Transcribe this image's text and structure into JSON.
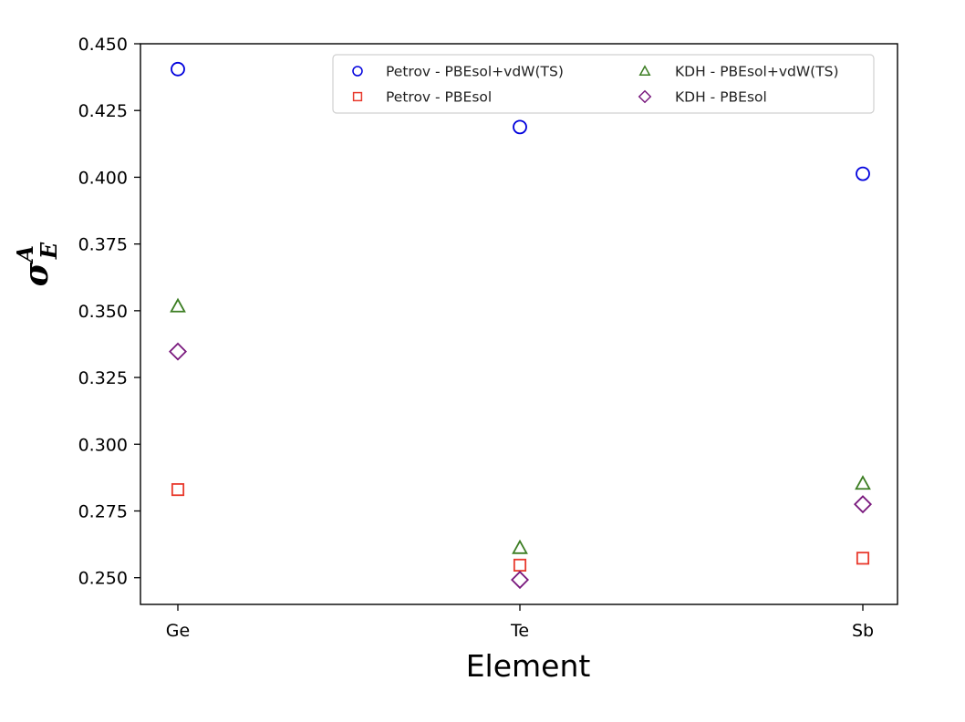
{
  "chart_data": {
    "type": "scatter",
    "xlabel": "Element",
    "ylabel": {
      "base": "σ",
      "sup": "A",
      "sub": "E"
    },
    "categories": [
      "Ge",
      "Te",
      "Sb"
    ],
    "ylim": [
      0.24,
      0.45
    ],
    "yticks": [
      "0.250",
      "0.275",
      "0.300",
      "0.325",
      "0.350",
      "0.375",
      "0.400",
      "0.425",
      "0.450"
    ],
    "grid": false,
    "legend_position": "top-right",
    "legend_columns": 2,
    "series": [
      {
        "name": "Petrov - PBEsol+vdW(TS)",
        "marker": "circle",
        "color": "#0000dd",
        "values": [
          0.4405,
          0.4188,
          0.4013
        ]
      },
      {
        "name": "Petrov - PBEsol",
        "marker": "square",
        "color": "#e8392c",
        "values": [
          0.283,
          0.2547,
          0.2573
        ]
      },
      {
        "name": "KDH - PBEsol+vdW(TS)",
        "marker": "triangle",
        "color": "#3b7d22",
        "values": [
          0.3517,
          0.2612,
          0.2853
        ]
      },
      {
        "name": "KDH - PBEsol",
        "marker": "diamond",
        "color": "#7a1a7e",
        "values": [
          0.3347,
          0.2492,
          0.2775
        ]
      }
    ]
  }
}
